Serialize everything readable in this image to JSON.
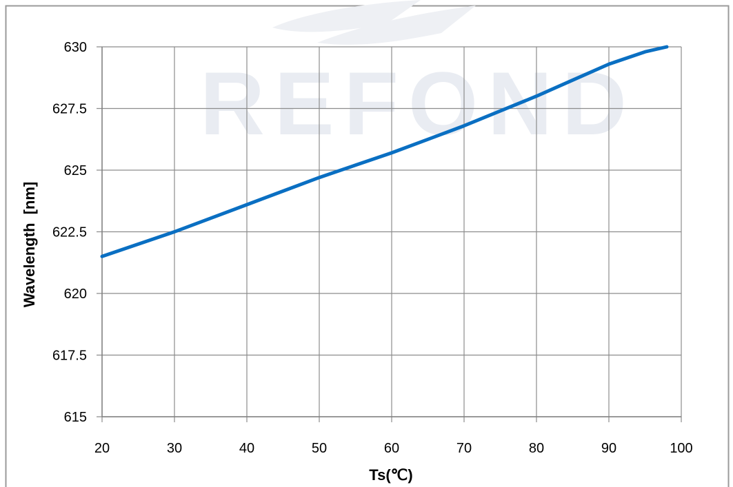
{
  "chart_data": {
    "type": "line",
    "title": "",
    "xlabel": "Ts(℃)",
    "ylabel": "Wavelength  [nm]",
    "xlim": [
      20,
      100
    ],
    "ylim": [
      615,
      630
    ],
    "x_ticks": [
      "20",
      "30",
      "40",
      "50",
      "60",
      "70",
      "80",
      "90",
      "100"
    ],
    "y_ticks": [
      "615",
      "617.5",
      "620",
      "622.5",
      "625",
      "627.5",
      "630"
    ],
    "grid": true,
    "legend": "none",
    "series": [
      {
        "color": "#0a6fc2",
        "x": [
          20,
          25,
          30,
          35,
          40,
          45,
          50,
          55,
          60,
          65,
          70,
          75,
          80,
          85,
          90,
          95,
          98
        ],
        "y": [
          621.5,
          622.0,
          622.5,
          623.05,
          623.6,
          624.15,
          624.7,
          625.2,
          625.7,
          626.25,
          626.8,
          627.4,
          628.0,
          628.65,
          629.3,
          629.8,
          630.0
        ]
      }
    ]
  },
  "watermark": {
    "text": "REFOND"
  }
}
